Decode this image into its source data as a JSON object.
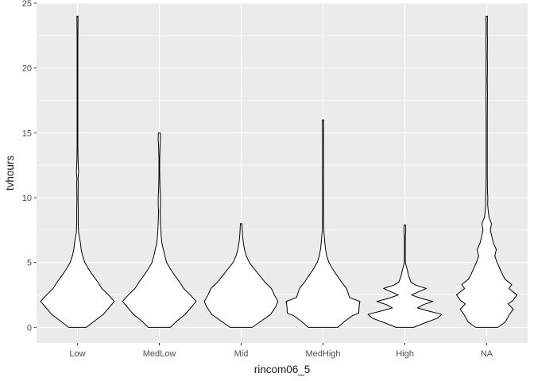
{
  "chart_data": {
    "type": "violin",
    "title": "",
    "xlabel": "rincom06_5",
    "ylabel": "tvhours",
    "categories": [
      "Low",
      "MedLow",
      "Mid",
      "MedHigh",
      "High",
      "NA"
    ],
    "ylim": [
      -1.2,
      25
    ],
    "yticks": [
      0,
      5,
      10,
      15,
      20,
      25
    ],
    "grid": true,
    "legend": "none",
    "panel_background": "#ebebeb",
    "grid_color": "#ffffff",
    "violin_fill": "#ffffff",
    "violin_outline": "#000000",
    "violins": [
      {
        "category": "Low",
        "profile": [
          [
            0,
            0.24
          ],
          [
            0.4,
            0.42
          ],
          [
            1,
            0.7
          ],
          [
            1.6,
            0.88
          ],
          [
            2,
            1.0
          ],
          [
            2.5,
            0.84
          ],
          [
            3,
            0.66
          ],
          [
            3.5,
            0.55
          ],
          [
            4,
            0.42
          ],
          [
            4.5,
            0.3
          ],
          [
            5,
            0.2
          ],
          [
            5.5,
            0.14
          ],
          [
            6,
            0.1
          ],
          [
            6.5,
            0.08
          ],
          [
            7,
            0.05
          ],
          [
            7.3,
            0.03
          ],
          [
            8,
            0.02
          ],
          [
            9,
            0.02
          ],
          [
            10,
            0.015
          ],
          [
            11,
            0.02
          ],
          [
            11.5,
            0.015
          ],
          [
            12,
            0.03
          ],
          [
            12.5,
            0.02
          ],
          [
            13,
            0.015
          ],
          [
            14,
            0.01
          ],
          [
            16,
            0.01
          ],
          [
            20,
            0.01
          ],
          [
            22,
            0.01
          ],
          [
            24,
            0.015
          ]
        ]
      },
      {
        "category": "MedLow",
        "profile": [
          [
            0,
            0.3
          ],
          [
            0.5,
            0.48
          ],
          [
            1,
            0.7
          ],
          [
            1.6,
            0.88
          ],
          [
            2,
            1.0
          ],
          [
            2.5,
            0.84
          ],
          [
            3,
            0.66
          ],
          [
            3.5,
            0.55
          ],
          [
            4,
            0.42
          ],
          [
            4.5,
            0.3
          ],
          [
            5,
            0.2
          ],
          [
            5.5,
            0.15
          ],
          [
            6,
            0.11
          ],
          [
            6.5,
            0.07
          ],
          [
            7,
            0.05
          ],
          [
            8,
            0.03
          ],
          [
            9,
            0.02
          ],
          [
            9.3,
            0.03
          ],
          [
            10,
            0.03
          ],
          [
            10.6,
            0.02
          ],
          [
            11,
            0.015
          ],
          [
            12,
            0.01
          ],
          [
            13,
            0.01
          ],
          [
            14,
            0.02
          ],
          [
            14.5,
            0.03
          ],
          [
            15,
            0.025
          ]
        ]
      },
      {
        "category": "Mid",
        "profile": [
          [
            0,
            0.3
          ],
          [
            0.5,
            0.55
          ],
          [
            1,
            0.8
          ],
          [
            1.6,
            0.94
          ],
          [
            2,
            1.0
          ],
          [
            2.5,
            0.9
          ],
          [
            3,
            0.82
          ],
          [
            3.5,
            0.64
          ],
          [
            4,
            0.5
          ],
          [
            4.5,
            0.36
          ],
          [
            5,
            0.22
          ],
          [
            5.5,
            0.14
          ],
          [
            6,
            0.09
          ],
          [
            6.5,
            0.06
          ],
          [
            7,
            0.04
          ],
          [
            7.5,
            0.03
          ],
          [
            8,
            0.02
          ]
        ]
      },
      {
        "category": "MedHigh",
        "profile": [
          [
            0,
            0.4
          ],
          [
            0.5,
            0.6
          ],
          [
            0.9,
            0.8
          ],
          [
            1.1,
            0.97
          ],
          [
            1.6,
            0.98
          ],
          [
            2,
            1.0
          ],
          [
            2.3,
            0.72
          ],
          [
            3,
            0.64
          ],
          [
            3.5,
            0.5
          ],
          [
            4,
            0.38
          ],
          [
            4.5,
            0.26
          ],
          [
            5,
            0.16
          ],
          [
            5.5,
            0.1
          ],
          [
            6,
            0.07
          ],
          [
            6.5,
            0.05
          ],
          [
            7,
            0.035
          ],
          [
            7.5,
            0.02
          ],
          [
            8,
            0.015
          ],
          [
            10,
            0.01
          ],
          [
            11.5,
            0.015
          ],
          [
            12,
            0.02
          ],
          [
            12.5,
            0.01
          ],
          [
            14,
            0.01
          ],
          [
            16,
            0.015
          ]
        ]
      },
      {
        "category": "High",
        "profile": [
          [
            0,
            0.24
          ],
          [
            0.3,
            0.5
          ],
          [
            0.7,
            0.88
          ],
          [
            1,
            1.0
          ],
          [
            1.3,
            0.58
          ],
          [
            1.5,
            0.34
          ],
          [
            1.75,
            0.5
          ],
          [
            2,
            0.76
          ],
          [
            2.25,
            0.42
          ],
          [
            2.5,
            0.18
          ],
          [
            2.75,
            0.38
          ],
          [
            3,
            0.58
          ],
          [
            3.25,
            0.3
          ],
          [
            3.5,
            0.16
          ],
          [
            4,
            0.1
          ],
          [
            4.5,
            0.06
          ],
          [
            5,
            0.012
          ],
          [
            6,
            0.012
          ],
          [
            7,
            0.012
          ],
          [
            7.5,
            0.025
          ],
          [
            7.9,
            0.02
          ]
        ]
      },
      {
        "category": "NA",
        "profile": [
          [
            0,
            0.3
          ],
          [
            0.4,
            0.5
          ],
          [
            1,
            0.62
          ],
          [
            1.4,
            0.72
          ],
          [
            1.8,
            0.58
          ],
          [
            2.1,
            0.72
          ],
          [
            2.5,
            0.82
          ],
          [
            3,
            0.6
          ],
          [
            3.3,
            0.68
          ],
          [
            3.7,
            0.5
          ],
          [
            4,
            0.44
          ],
          [
            4.5,
            0.36
          ],
          [
            5,
            0.28
          ],
          [
            5.5,
            0.22
          ],
          [
            6,
            0.26
          ],
          [
            6.5,
            0.18
          ],
          [
            7,
            0.14
          ],
          [
            7.5,
            0.1
          ],
          [
            8,
            0.13
          ],
          [
            8.5,
            0.06
          ],
          [
            9,
            0.04
          ],
          [
            9.5,
            0.025
          ],
          [
            10,
            0.03
          ],
          [
            10.5,
            0.02
          ],
          [
            12,
            0.015
          ],
          [
            14,
            0.015
          ],
          [
            16,
            0.015
          ],
          [
            18,
            0.02
          ],
          [
            19,
            0.015
          ],
          [
            20,
            0.02
          ],
          [
            21,
            0.015
          ],
          [
            22,
            0.02
          ],
          [
            23,
            0.015
          ],
          [
            24,
            0.02
          ]
        ]
      }
    ]
  }
}
